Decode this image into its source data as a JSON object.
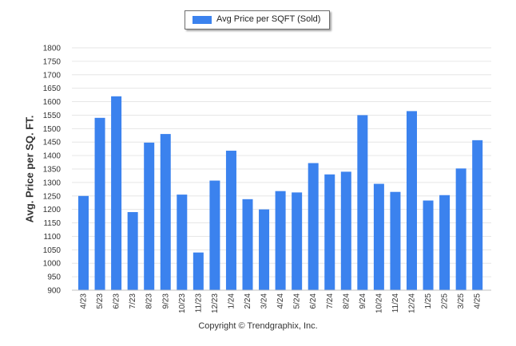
{
  "chart_data": {
    "type": "bar",
    "categories": [
      "4/23",
      "5/23",
      "6/23",
      "7/23",
      "8/23",
      "9/23",
      "10/23",
      "11/23",
      "12/23",
      "1/24",
      "2/24",
      "3/24",
      "4/24",
      "5/24",
      "6/24",
      "7/24",
      "8/24",
      "9/24",
      "10/24",
      "11/24",
      "12/24",
      "1/25",
      "2/25",
      "3/25",
      "4/25"
    ],
    "series": [
      {
        "name": "Avg Price per SQFT (Sold)",
        "values": [
          1250,
          1540,
          1620,
          1190,
          1448,
          1480,
          1255,
          1040,
          1307,
          1418,
          1238,
          1200,
          1268,
          1263,
          1372,
          1330,
          1340,
          1550,
          1295,
          1265,
          1565,
          1233,
          1253,
          1352,
          1457
        ]
      }
    ],
    "ylabel": "Avg. Price per SQ. FT.",
    "xlabel": "",
    "ylim": [
      900,
      1800
    ],
    "yticks": [
      900,
      950,
      1000,
      1050,
      1100,
      1150,
      1200,
      1250,
      1300,
      1350,
      1400,
      1450,
      1500,
      1550,
      1600,
      1650,
      1700,
      1750,
      1800
    ],
    "grid": true,
    "legend_position": "top-center",
    "bar_color": "#3b82ee"
  },
  "footer": {
    "copyright": "Copyright © Trendgraphix, Inc."
  }
}
